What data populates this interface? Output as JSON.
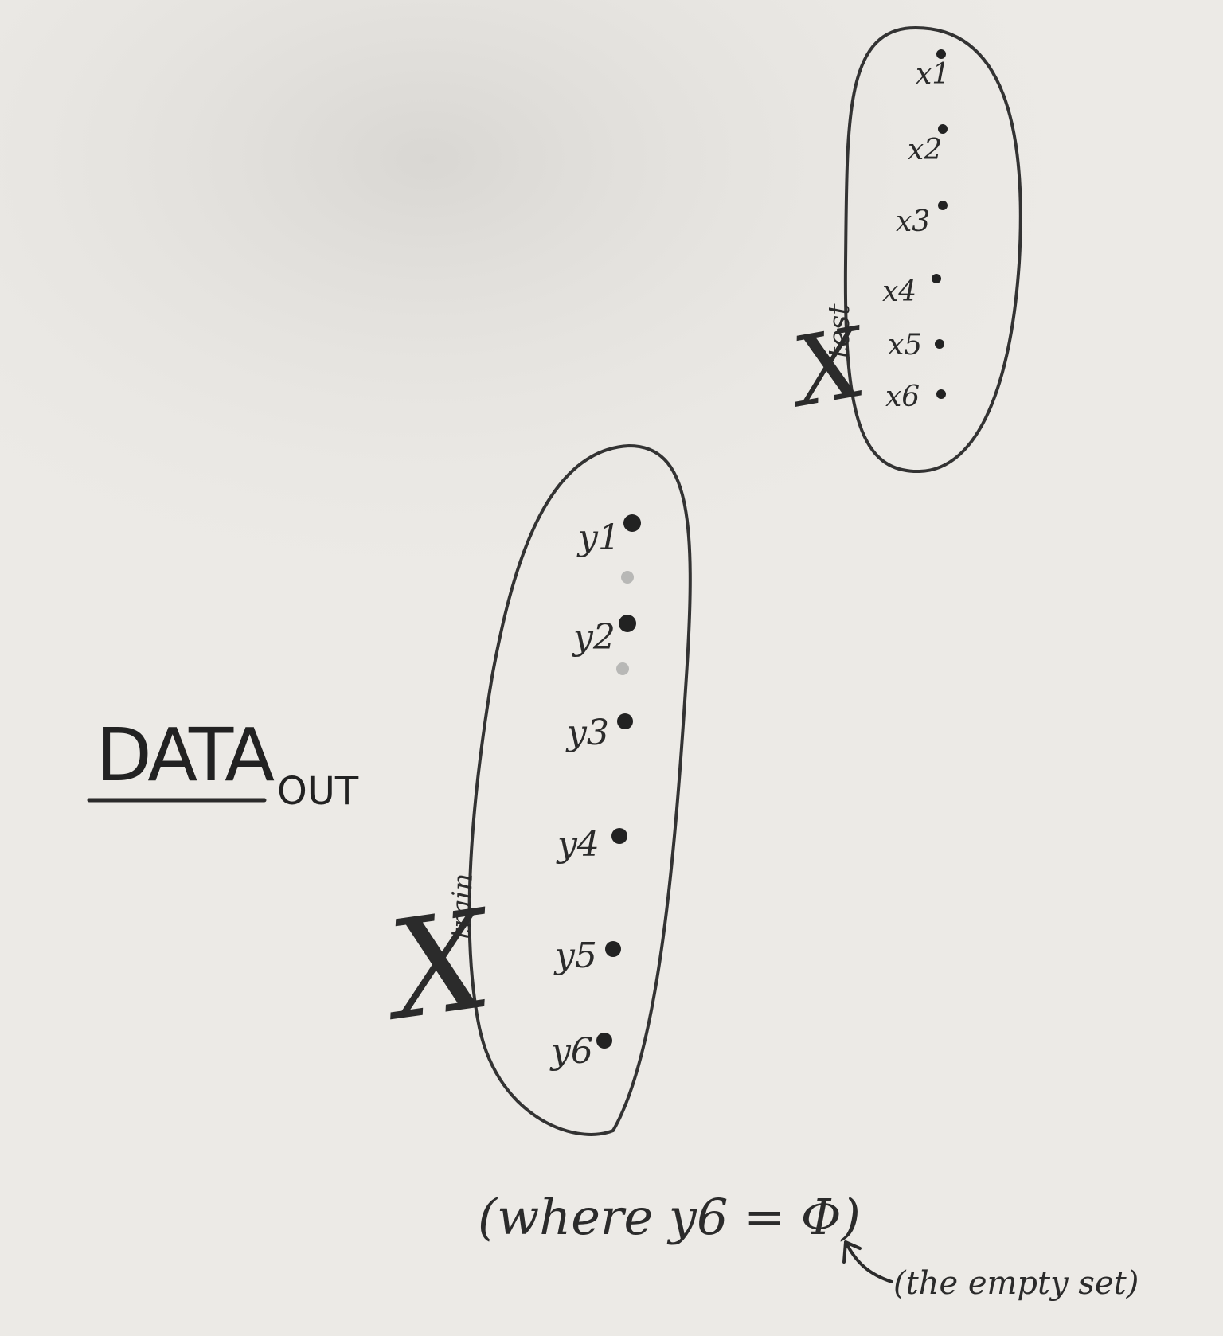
{
  "title": {
    "main": "DATA",
    "sub": "OUT"
  },
  "test_set": {
    "label_main": "X",
    "label_sub": "test",
    "points": [
      "x1",
      "x2",
      "x3",
      "x4",
      "x5",
      "x6"
    ]
  },
  "train_set": {
    "label_main": "X",
    "label_sub": "train",
    "points": [
      "y1",
      "y2",
      "y3",
      "y4",
      "y5",
      "y6"
    ]
  },
  "note": {
    "condition": "(where y6 = Φ)",
    "explanation": "(the empty set)"
  },
  "colors": {
    "paper": "#eceae6",
    "ink": "#2b2b2b"
  }
}
